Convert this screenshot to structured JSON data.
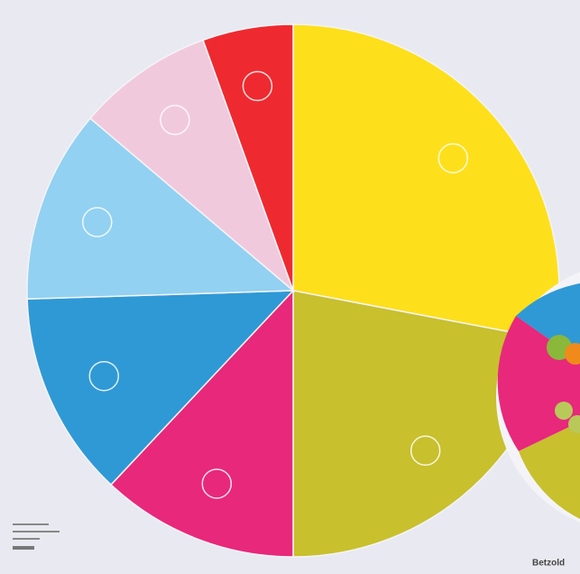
{
  "chart_data": {
    "type": "pie",
    "values": [
      28,
      22,
      12,
      12.5,
      11.7,
      8.3,
      5.5
    ],
    "colors": [
      "#fde01b",
      "#c8c02d",
      "#e7287b",
      "#2f99d5",
      "#92d1f1",
      "#f1c9dd",
      "#ee2a30"
    ],
    "start_angle": 0,
    "direction": "clockwise"
  },
  "brand": "Betzold"
}
